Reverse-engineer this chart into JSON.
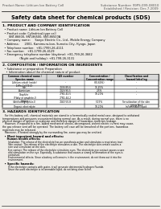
{
  "bg_color": "#f0ede8",
  "header_left": "Product Name: Lithium Ion Battery Cell",
  "header_right_line1": "Substance Number: 99PS-099-08010",
  "header_right_line2": "Established / Revision: Dec.7.2009",
  "title": "Safety data sheet for chemical products (SDS)",
  "section1_title": "1. PRODUCT AND COMPANY IDENTIFICATION",
  "section1_lines": [
    "  • Product name: Lithium Ion Battery Cell",
    "  • Product code: Cylindrical-type cell",
    "       SNT-86600, SNT-86500, SNT-86500A",
    "  • Company name:     Sanyo Electric Co., Ltd., Mobile Energy Company",
    "  • Address:      2001, Kamimura-kan, Sumoto-City, Hyogo, Japan",
    "  • Telephone number:  +81-(799)-26-4111",
    "  • Fax number:   +81-1799-26-4129",
    "  • Emergency telephone number (daytime): +81-799-26-3662",
    "                   (Night and holiday): +81-799-26-3131"
  ],
  "section2_title": "2. COMPOSITION / INFORMATION ON INGREDIENTS",
  "section2_sub1": "  • Substance or preparation: Preparation",
  "section2_sub2": "    • Information about the chemical nature of product",
  "table_col_headers": [
    "Common chemical name /\nSpecies name",
    "CAS number",
    "Concentration /\nConcentration range",
    "Classification and\nhazard labeling"
  ],
  "table_rows": [
    [
      "Lithium cobalt (oxide)\n(LiMn-Co)O2(4)",
      "-",
      "(30-60%)",
      "-"
    ],
    [
      "Iron",
      "7439-89-6",
      "15-25%",
      "-"
    ],
    [
      "Aluminium",
      "7429-90-5",
      "2-5%",
      "-"
    ],
    [
      "Graphite\n(Flaky or graphite-I)\n(Artificial graphite-I)",
      "7782-42-5\n7782-44-2",
      "10-20%",
      "-"
    ],
    [
      "Copper",
      "7440-50-8",
      "5-15%",
      "Sensitization of the skin\ngroup No.2"
    ],
    [
      "Organic electrolyte",
      "-",
      "10-20%",
      "Inflammable liquid"
    ]
  ],
  "section3_title": "3. HAZARDS IDENTIFICATION",
  "section3_body": [
    "   For this battery cell, chemical materials are stored in a hermetically sealed metal case, designed to withstand",
    "temperatures and pressures encountered during normal use. As a result, during normal use, there is no",
    "physical danger of ignition or explosion and therefore danger of hazardous materials leakage.",
    "   However, if exposed to a fire, added mechanical shocks, decomposed, violent electric current may cause,",
    "the gas release vent will be operated. The battery cell case will be breached of the portions. hazardous",
    "materials may be released.",
    "   Moreover, if heated strongly by the surrounding fire, some gas may be emitted."
  ],
  "section3_bullet1_title": "  • Most important hazard and effects:",
  "section3_human_title": "     Human health effects:",
  "section3_human_lines": [
    "        Inhalation: The release of the electrolyte has an anesthesia action and stimulates a respiratory tract.",
    "        Skin contact: The release of the electrolyte stimulates a skin. The electrolyte skin contact causes a",
    "        sore and stimulation on the skin.",
    "        Eye contact: The release of the electrolyte stimulates eyes. The electrolyte eye contact causes a sore",
    "        and stimulation on the eye. Especially, a substance that causes a strong inflammation of the eyes is",
    "        contained.",
    "        Environmental effects: Since a battery cell remains in the environment, do not throw out it into the",
    "        environment."
  ],
  "section3_specific_title": "  • Specific hazards:",
  "section3_specific_lines": [
    "        If the electrolyte contacts with water, it will generate detrimental hydrogen fluoride.",
    "        Since the used electrolyte is inflammable liquid, do not bring close to fire."
  ]
}
